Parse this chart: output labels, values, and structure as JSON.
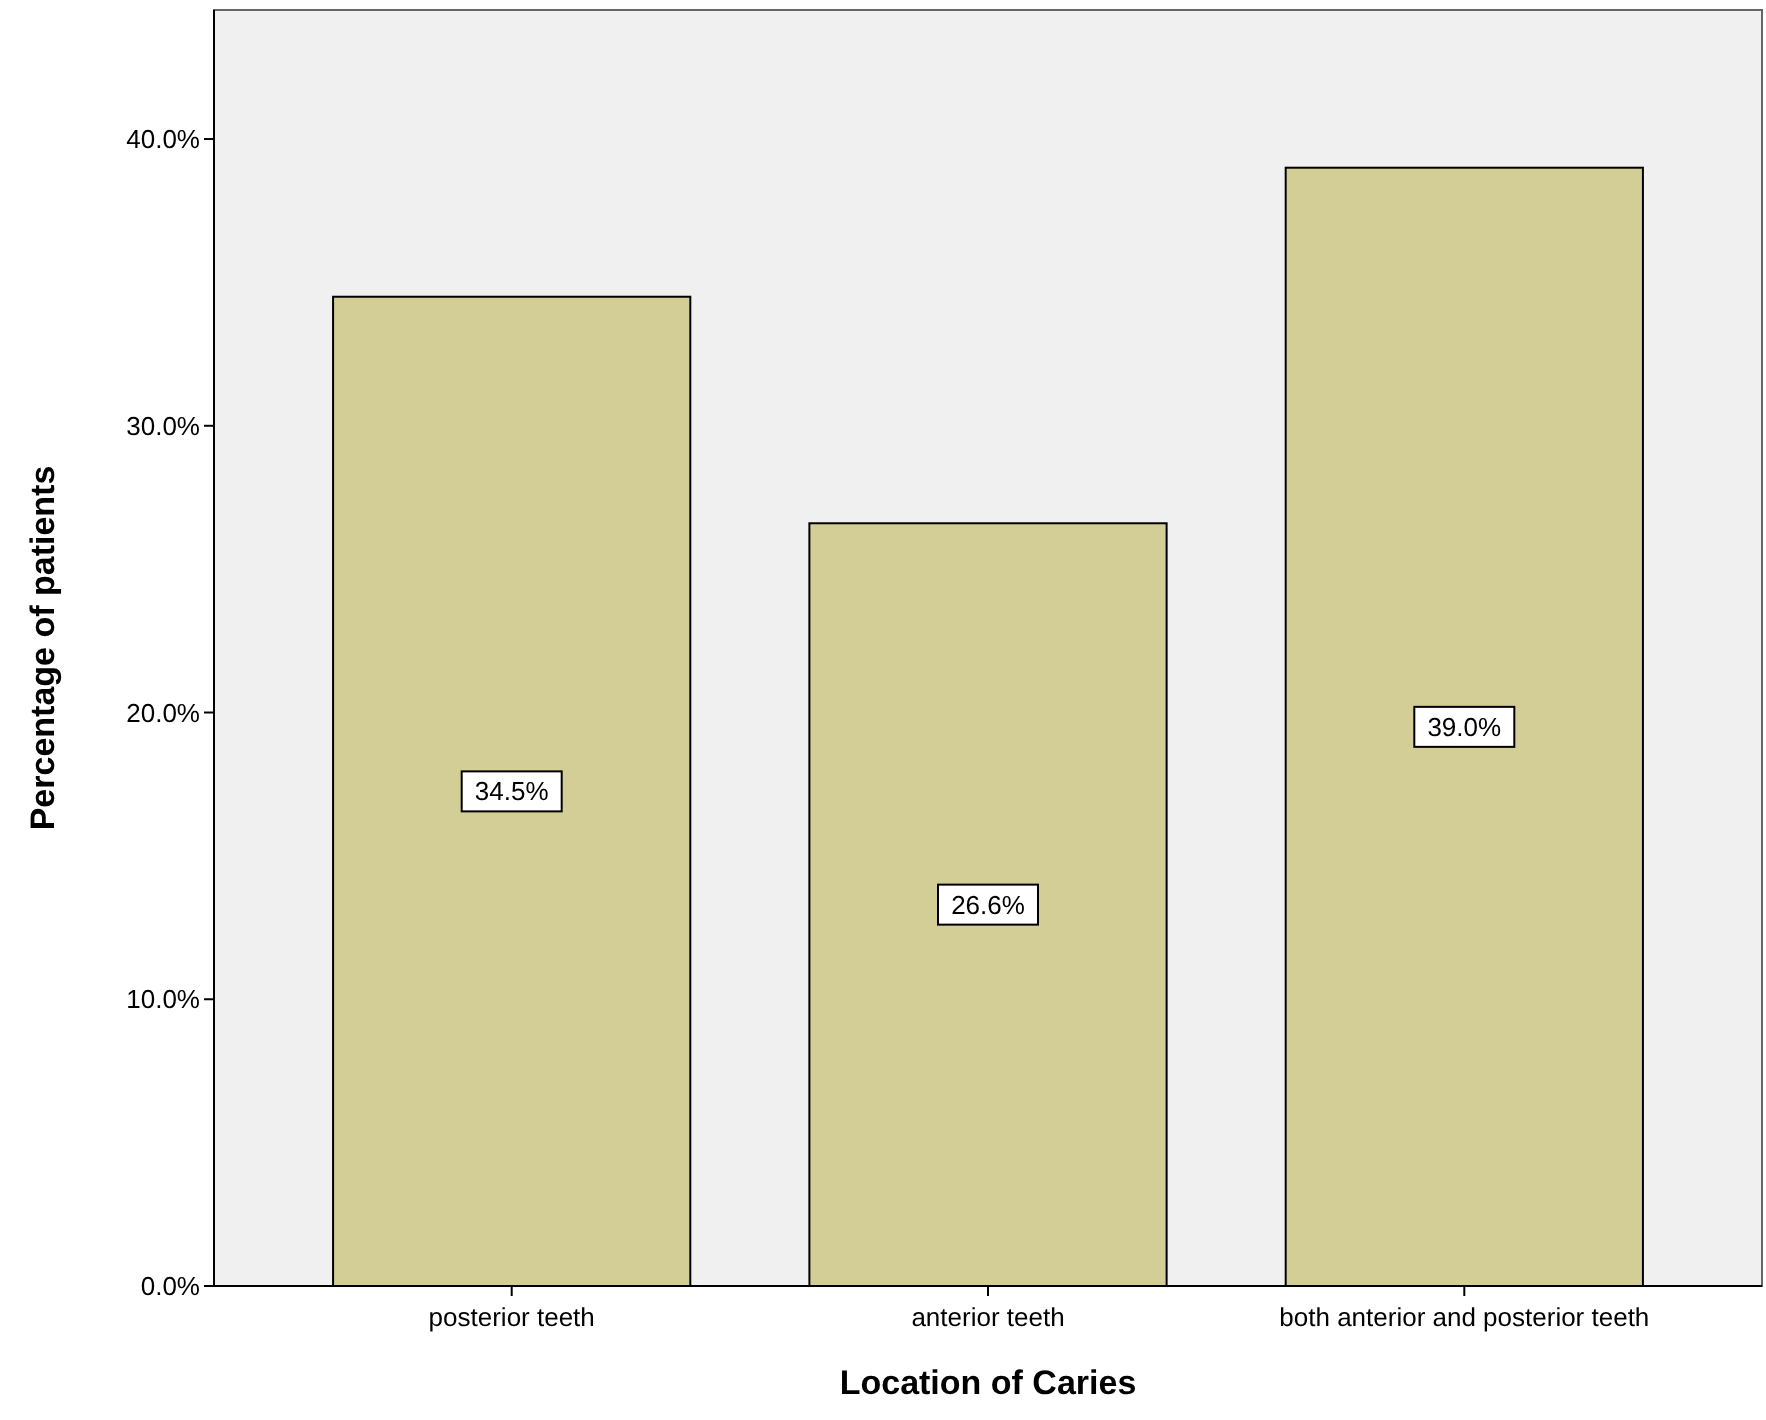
{
  "chart_data": {
    "type": "bar",
    "xlabel": "Location of Caries",
    "ylabel": "Percentage of patients",
    "categories": [
      "posterior teeth",
      "anterior teeth",
      "both anterior and posterior teeth"
    ],
    "values": [
      34.5,
      26.6,
      39.0
    ],
    "value_labels": [
      "34.5%",
      "26.6%",
      "39.0%"
    ],
    "color": "#d3cd96",
    "ylim": [
      0,
      44.5
    ],
    "yticks": [
      {
        "value": 0,
        "label": "0.0%"
      },
      {
        "value": 10,
        "label": "10.0%"
      },
      {
        "value": 20,
        "label": "20.0%"
      },
      {
        "value": 30,
        "label": "30.0%"
      },
      {
        "value": 40,
        "label": "40.0%"
      }
    ],
    "grid": false
  }
}
